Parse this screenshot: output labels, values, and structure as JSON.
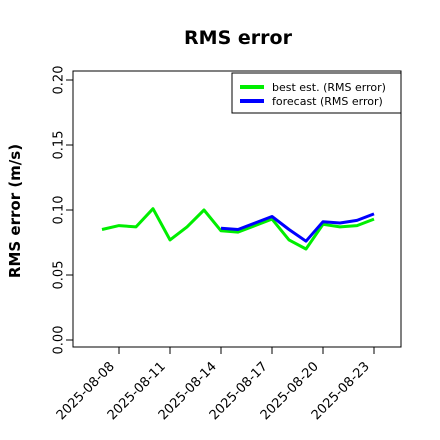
{
  "chart_data": {
    "type": "line",
    "title": "RMS error",
    "xlabel": "",
    "ylabel": "RMS error (m/s)",
    "ylim": [
      0,
      0.21
    ],
    "y_ticks": [
      0.0,
      0.05,
      0.1,
      0.15,
      0.2
    ],
    "y_tick_labels": [
      "0.00",
      "0.05",
      "0.10",
      "0.15",
      "0.20"
    ],
    "x": [
      "2025-08-07",
      "2025-08-08",
      "2025-08-09",
      "2025-08-10",
      "2025-08-11",
      "2025-08-12",
      "2025-08-13",
      "2025-08-14",
      "2025-08-15",
      "2025-08-16",
      "2025-08-17",
      "2025-08-18",
      "2025-08-19",
      "2025-08-20",
      "2025-08-21",
      "2025-08-22",
      "2025-08-23"
    ],
    "x_ticks": [
      "2025-08-08",
      "2025-08-11",
      "2025-08-14",
      "2025-08-17",
      "2025-08-20",
      "2025-08-23"
    ],
    "highlight_tick": "2025-08-14",
    "highlight_color": "#228b22",
    "legend_position": "top-right",
    "grid": false,
    "series": [
      {
        "name": "best est. (RMS error)",
        "color": "#00ee00",
        "values": [
          0.085,
          0.088,
          0.087,
          0.101,
          0.077,
          0.087,
          0.1,
          0.084,
          0.083,
          0.088,
          0.093,
          0.077,
          0.07,
          0.089,
          0.087,
          0.088,
          0.093
        ]
      },
      {
        "name": "forecast (RMS error)",
        "color": "#0000ff",
        "values": [
          null,
          null,
          null,
          null,
          null,
          null,
          null,
          0.086,
          0.085,
          0.09,
          0.095,
          0.085,
          0.076,
          0.091,
          0.09,
          0.092,
          0.097
        ]
      }
    ]
  }
}
